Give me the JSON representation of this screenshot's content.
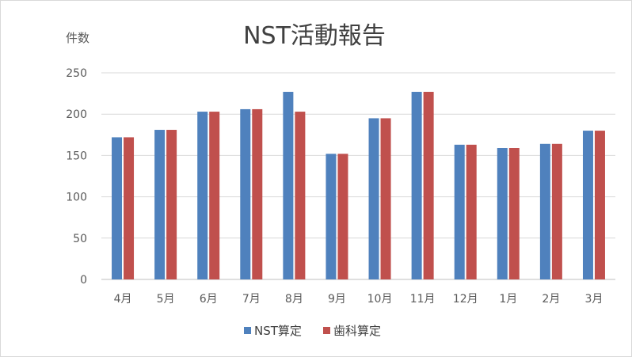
{
  "chart_data": {
    "type": "bar",
    "title": "NST活動報告",
    "ylabel": "件数",
    "xlabel": "",
    "ylim": [
      0,
      250
    ],
    "yticks": [
      0,
      50,
      100,
      150,
      200,
      250
    ],
    "grid": true,
    "legend_position": "bottom",
    "categories": [
      "4月",
      "5月",
      "6月",
      "7月",
      "8月",
      "9月",
      "10月",
      "11月",
      "12月",
      "1月",
      "2月",
      "3月"
    ],
    "series": [
      {
        "name": "NST算定",
        "color": "#4f81bd",
        "values": [
          172,
          181,
          203,
          206,
          227,
          152,
          195,
          227,
          163,
          159,
          164,
          180
        ]
      },
      {
        "name": "歯科算定",
        "color": "#c0504d",
        "values": [
          172,
          181,
          203,
          206,
          203,
          152,
          195,
          227,
          163,
          159,
          164,
          180
        ]
      }
    ]
  }
}
